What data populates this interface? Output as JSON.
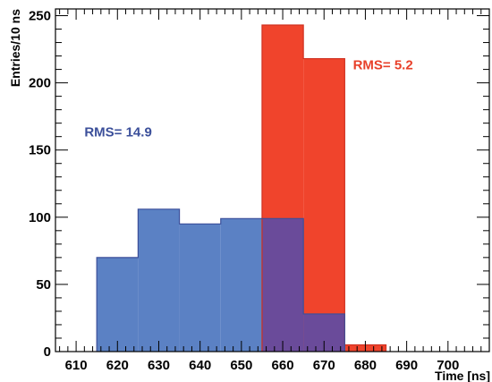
{
  "chart_data": {
    "type": "bar",
    "title": "",
    "xlabel": "Time [ns]",
    "ylabel": "Entries/10 ns",
    "xlim": [
      605,
      710
    ],
    "ylim": [
      0,
      255
    ],
    "grid": false,
    "x_ticks": [
      610,
      620,
      630,
      640,
      650,
      660,
      670,
      680,
      690,
      700
    ],
    "y_ticks": [
      0,
      50,
      100,
      150,
      200,
      250
    ],
    "bin_width": 10,
    "series": [
      {
        "color": "#5b81c4",
        "line_color": "#3b4f9a",
        "bins": [
          {
            "x0": 615,
            "x1": 625,
            "value": 70
          },
          {
            "x0": 625,
            "x1": 635,
            "value": 106
          },
          {
            "x0": 635,
            "x1": 645,
            "value": 95
          },
          {
            "x0": 645,
            "x1": 655,
            "value": 99
          },
          {
            "x0": 655,
            "x1": 665,
            "value": 99
          },
          {
            "x0": 665,
            "x1": 675,
            "value": 28
          }
        ]
      },
      {
        "color": "#f0442c",
        "line_color": "#d03020",
        "bins": [
          {
            "x0": 655,
            "x1": 665,
            "value": 243
          },
          {
            "x0": 665,
            "x1": 675,
            "value": 218
          },
          {
            "x0": 675,
            "x1": 685,
            "value": 5
          }
        ]
      }
    ],
    "overlap_color": "#6a4b9a",
    "annotations": [
      {
        "text": "RMS=  14.9",
        "color": "#3b4f9a",
        "x": 612,
        "y": 160
      },
      {
        "text": "RMS=  5.2",
        "color": "#e8402a",
        "x": 677,
        "y": 210
      }
    ]
  }
}
